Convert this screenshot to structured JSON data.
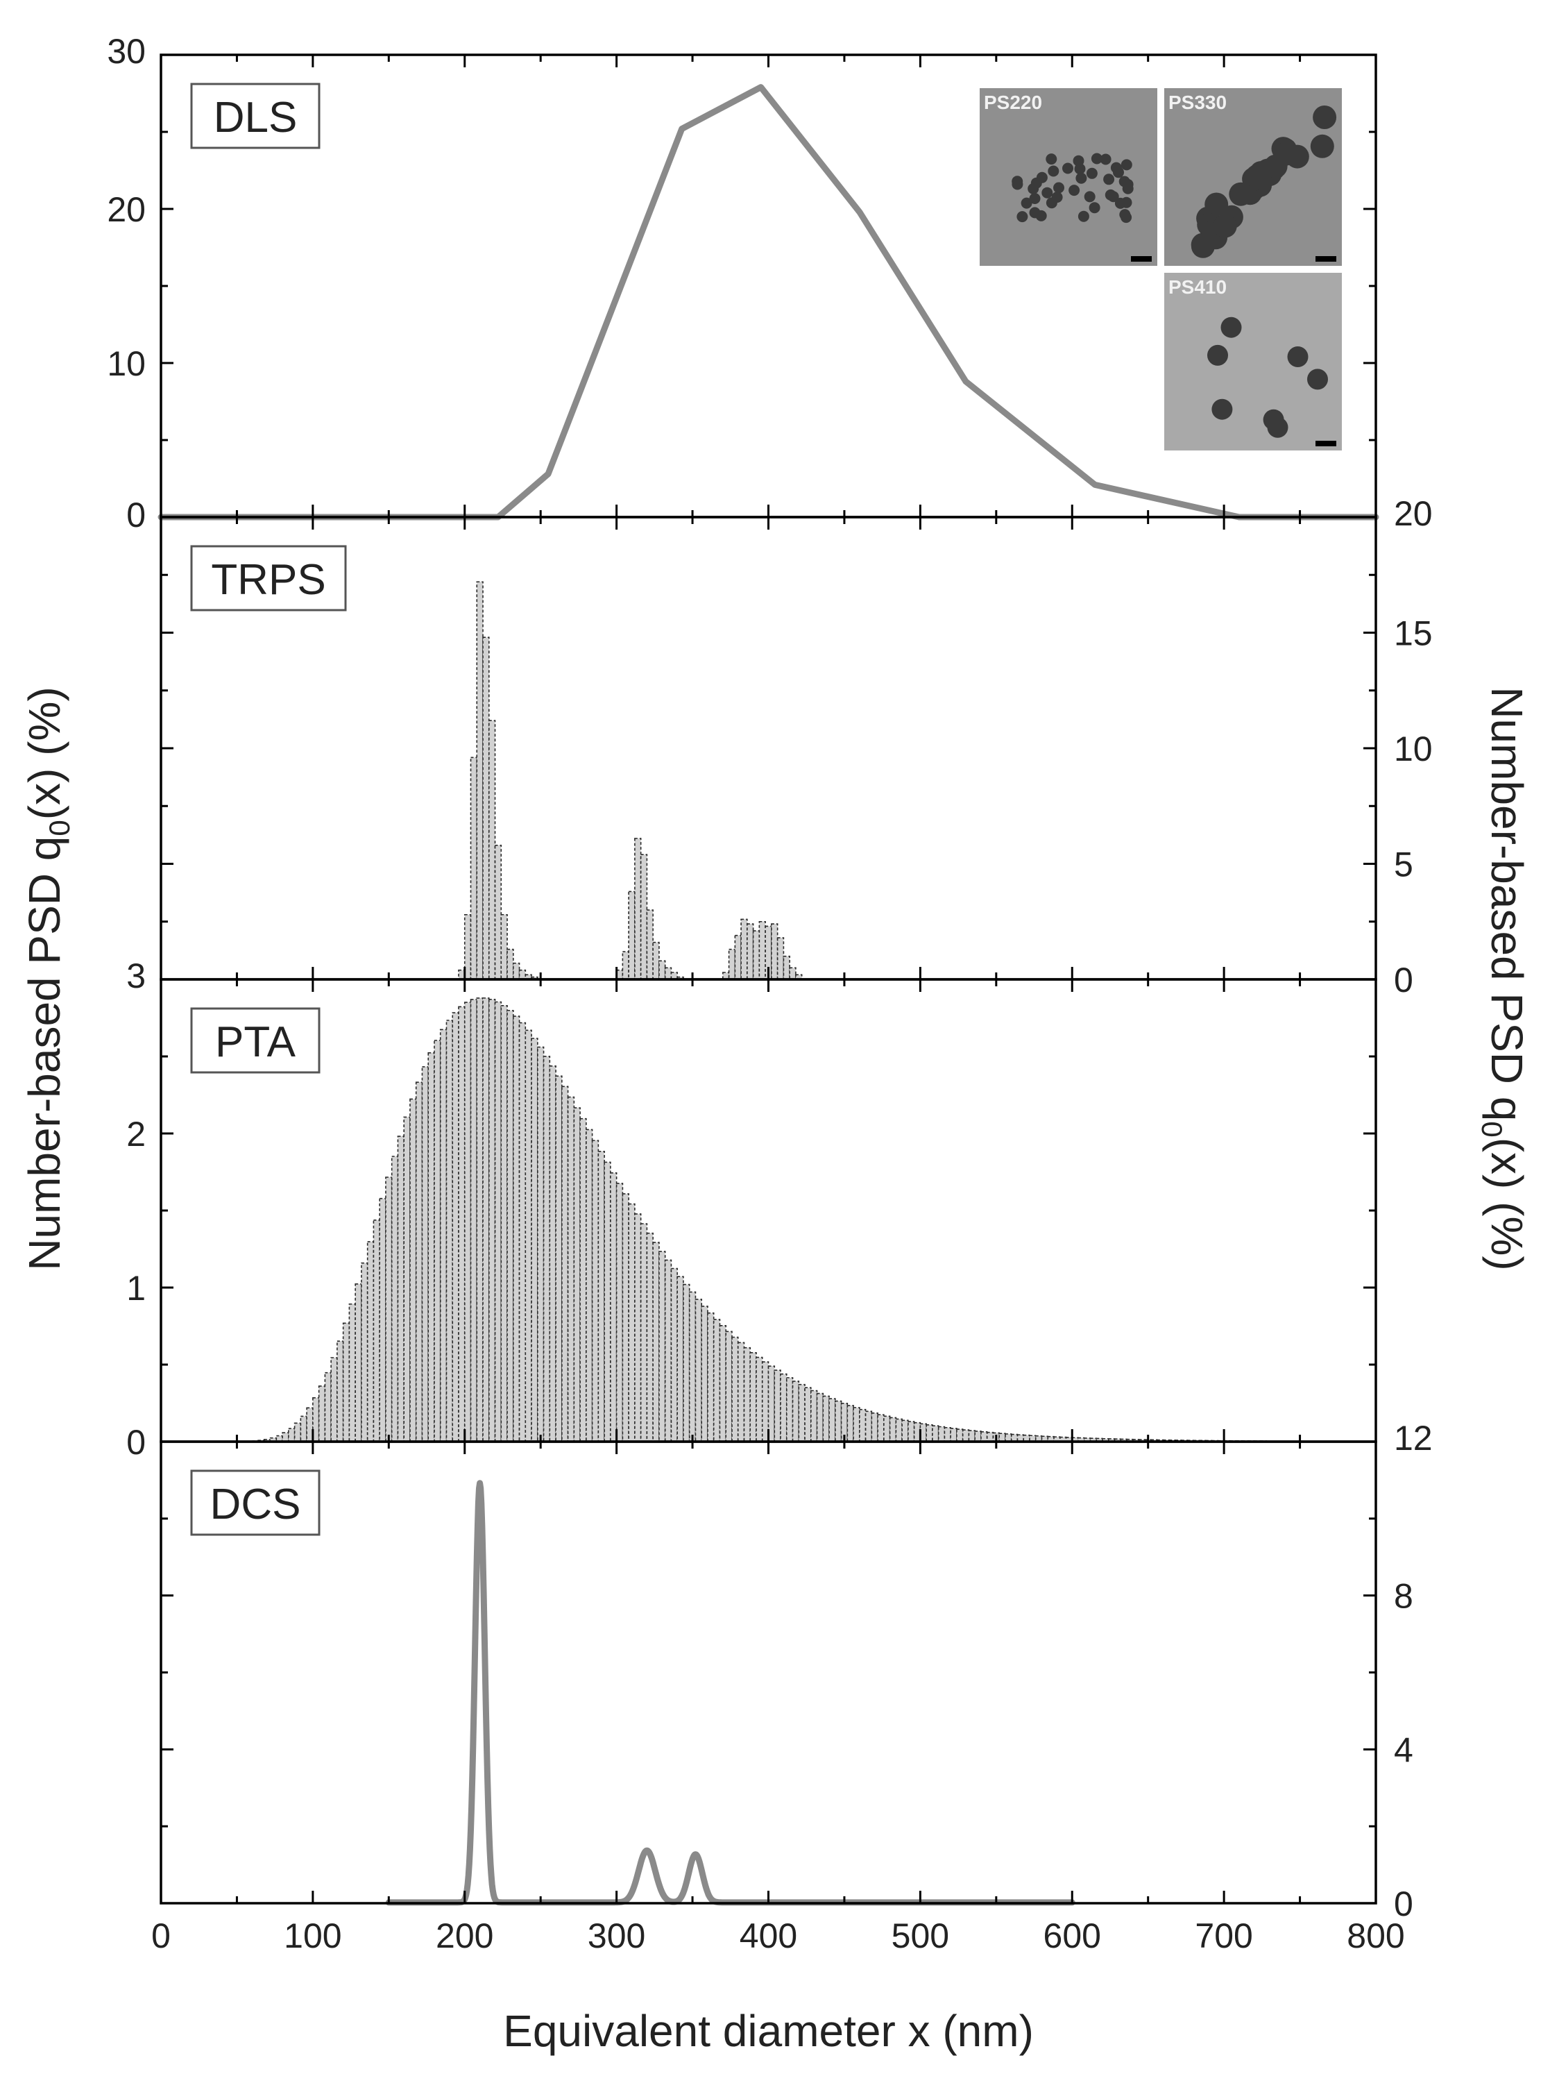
{
  "chart_data": {
    "type": "stacked-panels",
    "xlabel": "Equivalent diameter x (nm)",
    "ylabel_left": {
      "prefix": "Number-based PSD q",
      "sub": "0",
      "suffix": "(x) (%)"
    },
    "ylabel_right": {
      "prefix": "Number-based PSD q",
      "sub": "0",
      "suffix": "(x) (%)"
    },
    "xlim": [
      0,
      800
    ],
    "xticks": [
      0,
      100,
      200,
      300,
      400,
      500,
      600,
      700,
      800
    ],
    "xtick_labels": [
      "0",
      "100",
      "200",
      "300",
      "400",
      "500",
      "600",
      "700",
      "800"
    ],
    "line_color": "#8a8a8a",
    "panels": [
      {
        "name": "DLS",
        "type": "line",
        "axis_side": "left",
        "ylim": [
          0,
          30
        ],
        "yticks": [
          0,
          10,
          20,
          30
        ],
        "ytick_labels": [
          "0",
          "10",
          "20",
          "30"
        ],
        "x": [
          0,
          100,
          200,
          222,
          255,
          343,
          395,
          460,
          530,
          615,
          710,
          800
        ],
        "y": [
          0,
          0,
          0,
          0,
          2.8,
          25.2,
          27.9,
          19.8,
          8.8,
          2.1,
          0,
          0
        ],
        "insets": [
          {
            "label": "PS220"
          },
          {
            "label": "PS330"
          },
          {
            "label": "PS410"
          }
        ]
      },
      {
        "name": "TRPS",
        "type": "histogram",
        "axis_side": "right",
        "ylim": [
          0,
          20
        ],
        "yticks": [
          0,
          5,
          10,
          15,
          20
        ],
        "ytick_labels": [
          "0",
          "5",
          "10",
          "15",
          "20"
        ],
        "bin_width": 4,
        "x": [
          196,
          200,
          204,
          208,
          212,
          216,
          220,
          224,
          228,
          232,
          236,
          240,
          244,
          300,
          304,
          308,
          312,
          316,
          320,
          324,
          328,
          332,
          336,
          340,
          370,
          374,
          378,
          382,
          386,
          390,
          394,
          398,
          402,
          406,
          410,
          414,
          418
        ],
        "y": [
          0.4,
          2.8,
          9.6,
          17.2,
          14.8,
          11.2,
          5.8,
          2.8,
          1.3,
          0.7,
          0.4,
          0.2,
          0.1,
          0.4,
          1.2,
          3.8,
          6.1,
          5.4,
          3.0,
          1.6,
          0.8,
          0.5,
          0.3,
          0.1,
          0.3,
          1.3,
          1.9,
          2.6,
          2.4,
          2.1,
          2.5,
          2.3,
          2.4,
          1.8,
          1.0,
          0.5,
          0.2
        ]
      },
      {
        "name": "PTA",
        "type": "histogram",
        "axis_side": "left",
        "ylim": [
          0,
          3
        ],
        "yticks": [
          0,
          1,
          2,
          3
        ],
        "ytick_labels": [
          "0",
          "1",
          "2",
          "3"
        ],
        "bin_width": 4,
        "distribution": "log-normal",
        "mode_nm": 212,
        "peak_value": 2.88,
        "sigma": 0.34,
        "range_nm": [
          60,
          800
        ]
      },
      {
        "name": "DCS",
        "type": "line",
        "axis_side": "right",
        "ylim": [
          0,
          12
        ],
        "yticks": [
          0,
          4,
          8,
          12
        ],
        "ytick_labels": [
          "0",
          "4",
          "8",
          "12"
        ],
        "baseline_range_nm": [
          150,
          600
        ],
        "peaks": [
          {
            "x": 210,
            "y": 10.9,
            "width": 3.2
          },
          {
            "x": 320,
            "y": 1.35,
            "width": 5.5
          },
          {
            "x": 352,
            "y": 1.25,
            "width": 4.5
          }
        ]
      }
    ]
  }
}
